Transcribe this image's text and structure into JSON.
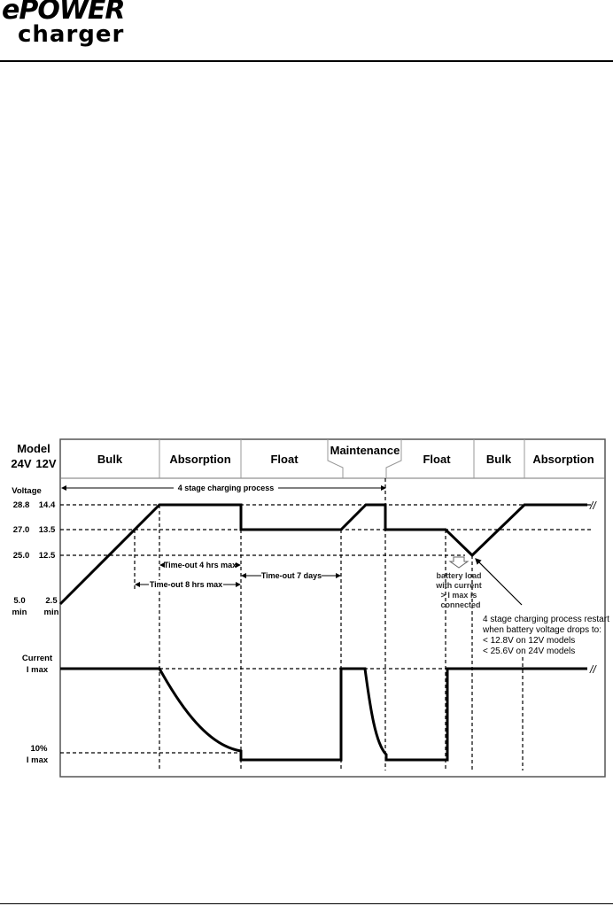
{
  "logo": {
    "line1": "ePOWER",
    "line2": "charger"
  },
  "diagram": {
    "model_label": "Model",
    "model_24v": "24V",
    "model_12v": "12V",
    "stages": [
      "Bulk",
      "Absorption",
      "Float",
      "Maintenance",
      "Float",
      "Bulk",
      "Absorption"
    ],
    "voltage_label": "Voltage",
    "voltage_ticks": [
      {
        "v24": "28.8",
        "v12": "14.4"
      },
      {
        "v24": "27.0",
        "v12": "13.5"
      },
      {
        "v24": "25.0",
        "v12": "12.5"
      }
    ],
    "min_24": "5.0",
    "min_12": "2.5",
    "min_unit": "min",
    "current_label": "Current",
    "imax_label": "I max",
    "ten_pct": "10%",
    "ten_pct_imax": "I max",
    "process_label": "4 stage charging process",
    "timeout_4h": "Time-out 4 hrs max",
    "timeout_8h": "Time-out 8 hrs max",
    "timeout_7d": "Time-out 7 days",
    "load_note": [
      "battery load",
      "with current",
      "> I max is",
      "connected"
    ],
    "restart_note": [
      "4 stage charging process restart",
      "when battery voltage drops to:",
      "< 12.8V on 12V models",
      "< 25.6V on 24V models"
    ],
    "break_symbol": "ꟾ"
  }
}
